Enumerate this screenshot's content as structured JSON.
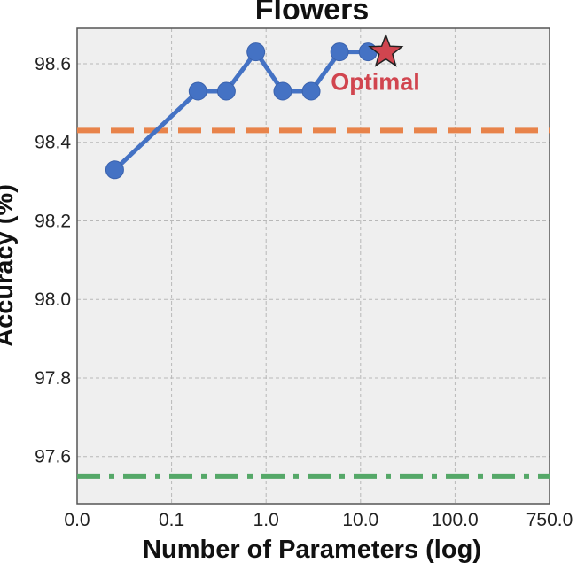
{
  "chart_data": {
    "type": "line",
    "title": "Flowers",
    "xlabel": "Number of Parameters (log)",
    "ylabel": "Accuracy (%)",
    "x_ticks": [
      "0.0",
      "0.1",
      "1.0",
      "10.0",
      "100.0",
      "750.0"
    ],
    "y_ticks": [
      "97.6",
      "97.8",
      "98.0",
      "98.2",
      "98.4",
      "98.6"
    ],
    "ylim": [
      97.48,
      98.69
    ],
    "grid": true,
    "series": [
      {
        "values": [
          {
            "x": 0.025,
            "y": 98.33
          },
          {
            "x": 0.19,
            "y": 98.53
          },
          {
            "x": 0.38,
            "y": 98.53
          },
          {
            "x": 0.78,
            "y": 98.63
          },
          {
            "x": 1.5,
            "y": 98.53
          },
          {
            "x": 3.0,
            "y": 98.53
          },
          {
            "x": 6.0,
            "y": 98.63
          },
          {
            "x": 12.0,
            "y": 98.63
          }
        ],
        "color": "#4472c4"
      }
    ],
    "reference_lines": [
      {
        "y": 98.43,
        "color": "#e8834a",
        "style": "dashed"
      },
      {
        "y": 97.55,
        "color": "#55a868",
        "style": "dashdot"
      }
    ],
    "annotation": {
      "text": "Optimal",
      "x": 18.5,
      "y": 98.63,
      "marker": "star",
      "color": "#d1454f"
    }
  }
}
